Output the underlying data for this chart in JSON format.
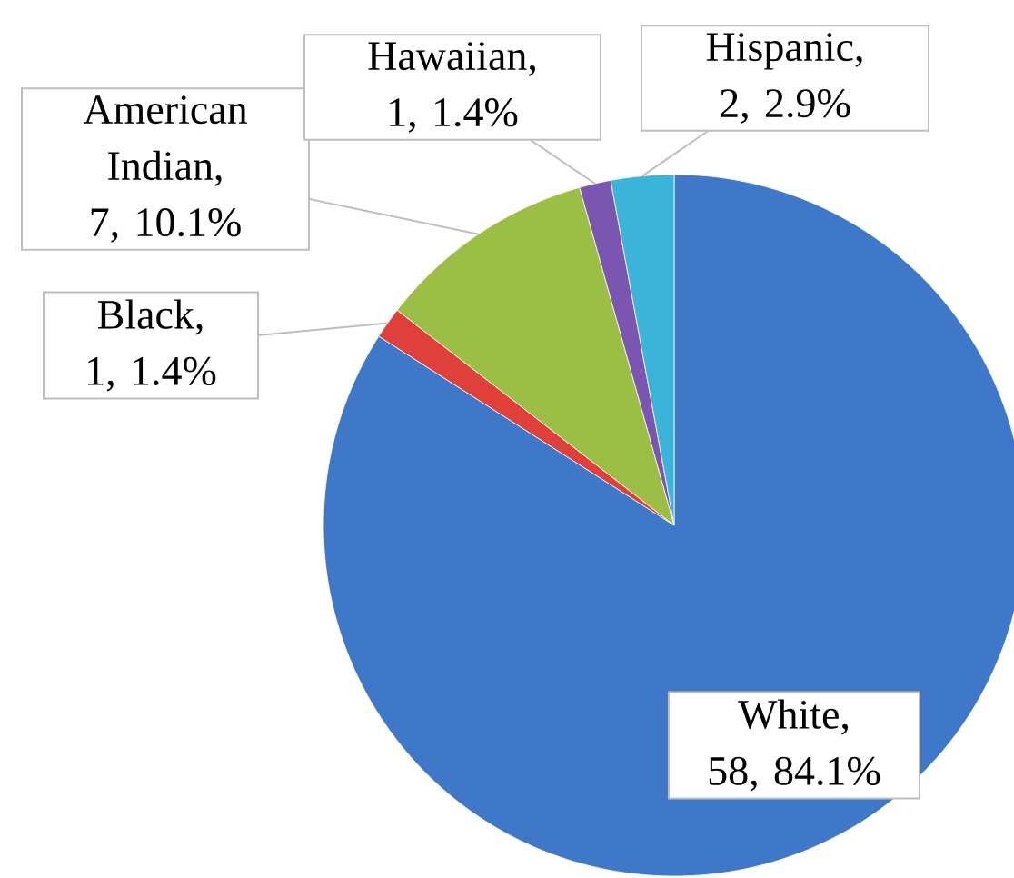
{
  "chart_data": {
    "type": "pie",
    "categories": [
      "White",
      "Black",
      "American Indian",
      "Hawaiian",
      "Hispanic"
    ],
    "values": [
      58,
      1,
      7,
      1,
      2
    ],
    "value_labels": [
      ", 58, 84.1%",
      ", 1, 1.4%",
      ", 7, 10.1%",
      ", 1, 1.4%",
      ", 2, 2.9%"
    ],
    "colors": [
      "#3f78c8",
      "#e0403a",
      "#9bbf45",
      "#7b55b0",
      "#3ab4d8"
    ]
  }
}
